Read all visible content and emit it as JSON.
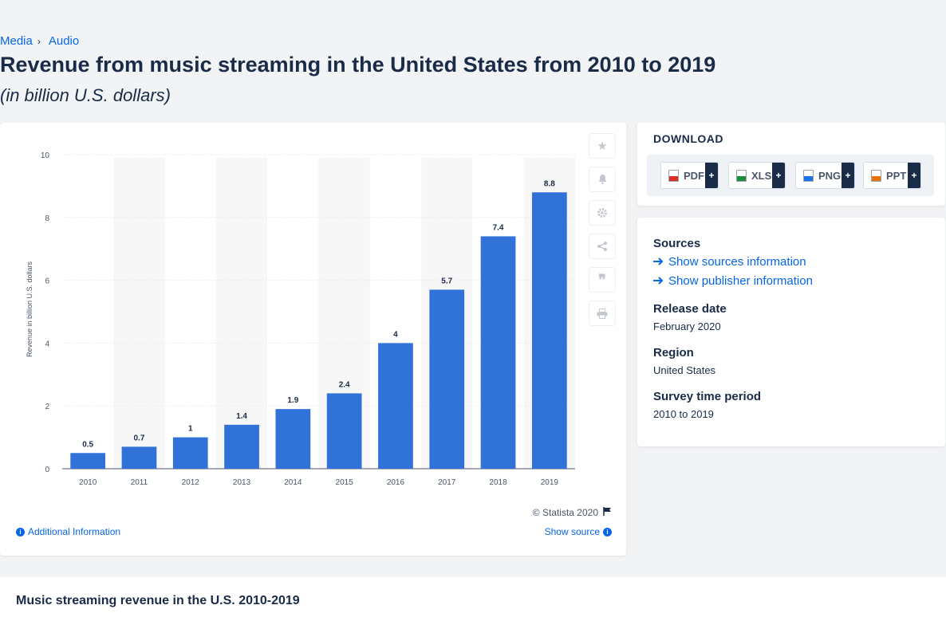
{
  "breadcrumb": {
    "items": [
      "Media",
      "Audio"
    ]
  },
  "page": {
    "title": "Revenue from music streaming in the United States from 2010 to 2019",
    "subtitle": "(in billion U.S. dollars)"
  },
  "chart_data": {
    "type": "bar",
    "categories": [
      "2010",
      "2011",
      "2012",
      "2013",
      "2014",
      "2015",
      "2016",
      "2017",
      "2018",
      "2019"
    ],
    "values": [
      0.5,
      0.7,
      1,
      1.4,
      1.9,
      2.4,
      4,
      5.7,
      7.4,
      8.8
    ],
    "value_labels": [
      "0.5",
      "0.7",
      "1",
      "1.4",
      "1.9",
      "2.4",
      "4",
      "5.7",
      "7.4",
      "8.8"
    ],
    "title": "",
    "xlabel": "",
    "ylabel": "Revenue in billion U.S. dollars",
    "ylim": [
      0,
      10
    ],
    "yticks": [
      0,
      2,
      4,
      6,
      8,
      10
    ],
    "grid": true,
    "bar_color": "#3172d9"
  },
  "chart": {
    "copyright": "© Statista 2020",
    "additional_info": "Additional Information",
    "show_source": "Show source",
    "tools": [
      "star-icon",
      "bell-icon",
      "gear-icon",
      "share-icon",
      "quote-icon",
      "print-icon"
    ]
  },
  "download": {
    "title": "DOWNLOAD",
    "buttons": [
      {
        "label": "PDF",
        "icon_color": "#d93025"
      },
      {
        "label": "XLS",
        "icon_color": "#1e8e3e"
      },
      {
        "label": "PNG",
        "icon_color": "#1a73e8"
      },
      {
        "label": "PPT",
        "icon_color": "#e8710a"
      }
    ],
    "plus": "+"
  },
  "meta": {
    "sources_title": "Sources",
    "show_sources": "Show sources information",
    "show_publisher": "Show publisher information",
    "release_title": "Release date",
    "release_value": "February 2020",
    "region_title": "Region",
    "region_value": "United States",
    "survey_title": "Survey time period",
    "survey_value": "2010 to 2019"
  },
  "bottom": {
    "title": "Music streaming revenue in the U.S. 2010-2019"
  },
  "colors": {
    "accent": "#0666e5",
    "text": "#1a2b48",
    "bar": "#3172d9"
  }
}
